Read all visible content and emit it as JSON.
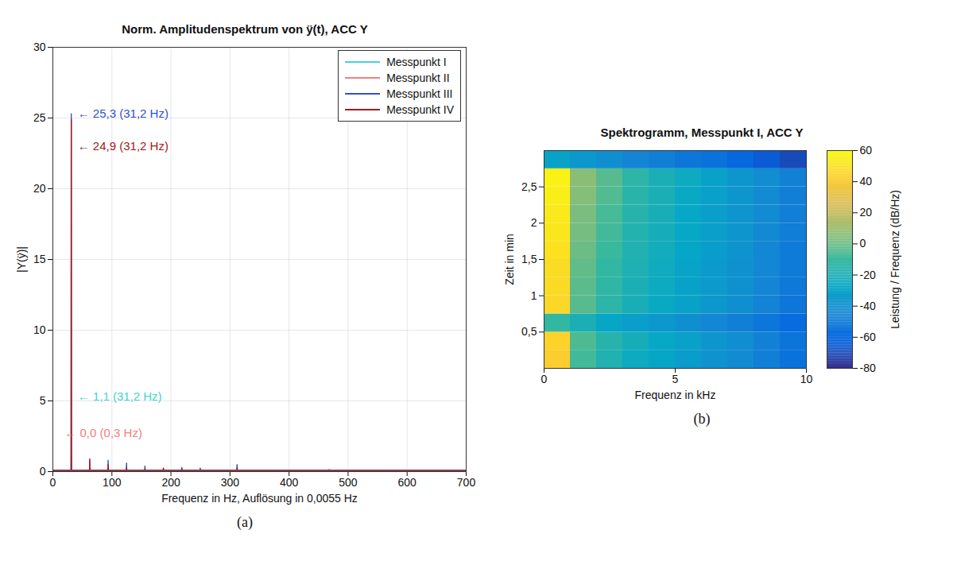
{
  "chart_data": [
    {
      "type": "line",
      "title": "Norm. Amplitudenspektrum von ÿ(t),  ACC Y",
      "x_label": "Frequenz in Hz, Auflösung in 0,0055 Hz",
      "y_label": "|Y(ÿ)|",
      "caption": "(a)",
      "xlim": [
        0,
        700
      ],
      "xticks": [
        0,
        100,
        200,
        300,
        400,
        500,
        600,
        700
      ],
      "ylim": [
        0,
        30
      ],
      "yticks": [
        0,
        5,
        10,
        15,
        20,
        25,
        30
      ],
      "grid": true,
      "legend": "top-right",
      "x": [
        0,
        0.3,
        30.9,
        31.2,
        31.5,
        62.1,
        62.4,
        62.7,
        93.3,
        93.6,
        93.9,
        124.5,
        124.8,
        125.1,
        155.7,
        156,
        156.3,
        186.9,
        187.2,
        187.5,
        218.1,
        218.4,
        218.7,
        249.3,
        249.6,
        249.9,
        311.7,
        312,
        312.3,
        467.7,
        468,
        468.3,
        700
      ],
      "series": [
        {
          "name": "Messpunkt I",
          "color": "#45d3d3",
          "values": [
            0.05,
            0.05,
            0.05,
            1.1,
            0.05,
            0.05,
            0.15,
            0.05,
            0.05,
            0.1,
            0.05,
            0.05,
            0.1,
            0.05,
            0.05,
            0.08,
            0.05,
            0.05,
            0.06,
            0.05,
            0.05,
            0.06,
            0.05,
            0.05,
            0.05,
            0.05,
            0.05,
            0.1,
            0.05,
            0.05,
            0.05,
            0.05,
            0.05
          ]
        },
        {
          "name": "Messpunkt II",
          "color": "#f28080",
          "values": [
            0.0,
            0.0,
            0.0,
            0.0,
            0.0,
            0.0,
            0.0,
            0.0,
            0.0,
            0.0,
            0.0,
            0.0,
            0.0,
            0.0,
            0.0,
            0.0,
            0.0,
            0.0,
            0.0,
            0.0,
            0.0,
            0.0,
            0.0,
            0.0,
            0.0,
            0.0,
            0.0,
            0.0,
            0.0,
            0.0,
            0.0,
            0.0,
            0.0
          ]
        },
        {
          "name": "Messpunkt III",
          "color": "#2f50d0",
          "values": [
            0.1,
            0.1,
            0.1,
            25.3,
            0.1,
            0.1,
            0.8,
            0.1,
            0.1,
            0.8,
            0.1,
            0.1,
            0.6,
            0.1,
            0.1,
            0.4,
            0.1,
            0.1,
            0.2,
            0.1,
            0.1,
            0.3,
            0.1,
            0.1,
            0.25,
            0.1,
            0.1,
            0.5,
            0.1,
            0.1,
            0.15,
            0.1,
            0.1
          ]
        },
        {
          "name": "Messpunkt IV",
          "color": "#a31a1a",
          "values": [
            0.1,
            0.1,
            0.1,
            24.9,
            0.1,
            0.1,
            0.9,
            0.1,
            0.1,
            0.5,
            0.1,
            0.1,
            0.3,
            0.1,
            0.1,
            0.2,
            0.1,
            0.1,
            0.25,
            0.1,
            0.1,
            0.2,
            0.1,
            0.1,
            0.15,
            0.1,
            0.1,
            0.3,
            0.1,
            0.1,
            0.1,
            0.1,
            0.1
          ]
        }
      ],
      "annotations": [
        {
          "text": "← 25,3 (31,2 Hz)",
          "x": 42,
          "y": 25.3,
          "color": "#2f50d0"
        },
        {
          "text": "← 24,9 (31,2 Hz)",
          "x": 42,
          "y": 23,
          "color": "#a31a1a"
        },
        {
          "text": "← 1,1 (31,2 Hz)",
          "x": 42,
          "y": 5.3,
          "color": "#45d3d3"
        },
        {
          "text": "← 0,0 (0,3 Hz)",
          "x": 20,
          "y": 2.7,
          "color": "#f28080"
        }
      ]
    },
    {
      "type": "heatmap",
      "title": "Spektrogramm, Messpunkt I, ACC Y",
      "x_label": "Frequenz in kHz",
      "y_label": "Zeit in min",
      "caption": "(b)",
      "xlim": [
        0,
        10
      ],
      "xticks": [
        0,
        5,
        10
      ],
      "ylim": [
        0,
        3
      ],
      "yticks": [
        {
          "value": 0.5,
          "label": "0,5"
        },
        1,
        {
          "value": 1.5,
          "label": "1,5"
        },
        2,
        {
          "value": 2.5,
          "label": "2,5"
        }
      ],
      "x_edges": [
        0,
        1,
        2,
        3,
        4,
        5,
        6,
        7,
        8,
        9,
        10
      ],
      "y_edges": [
        0,
        0.25,
        0.5,
        0.75,
        1,
        1.25,
        1.5,
        1.75,
        2,
        2.25,
        2.5,
        2.75,
        3
      ],
      "cells": [
        [
          42,
          -8,
          -18,
          -25,
          -28,
          -33,
          -38,
          -42,
          -48,
          -55
        ],
        [
          44,
          -6,
          -16,
          -22,
          -27,
          -31,
          -36,
          -41,
          -47,
          -53
        ],
        [
          -12,
          -20,
          -28,
          -32,
          -35,
          -40,
          -44,
          -48,
          -52,
          -58
        ],
        [
          46,
          -4,
          -14,
          -21,
          -26,
          -30,
          -35,
          -40,
          -46,
          -52
        ],
        [
          47,
          -3,
          -13,
          -20,
          -25,
          -30,
          -34,
          -39,
          -45,
          -51
        ],
        [
          48,
          -2,
          -12,
          -19,
          -24,
          -29,
          -34,
          -39,
          -44,
          -50
        ],
        [
          50,
          0,
          -10,
          -18,
          -23,
          -28,
          -33,
          -38,
          -44,
          -50
        ],
        [
          52,
          2,
          -8,
          -17,
          -22,
          -27,
          -32,
          -37,
          -43,
          -49
        ],
        [
          53,
          3,
          -7,
          -16,
          -21,
          -27,
          -32,
          -37,
          -42,
          -48
        ],
        [
          55,
          5,
          -5,
          -15,
          -20,
          -26,
          -31,
          -36,
          -42,
          -48
        ],
        [
          56,
          6,
          -4,
          -14,
          -20,
          -25,
          -30,
          -36,
          -41,
          -47
        ],
        [
          -30,
          -35,
          -40,
          -45,
          -48,
          -52,
          -55,
          -60,
          -65,
          -70
        ]
      ],
      "colorbar_label": "Leistung / Frequenz (dB/Hz)",
      "colorbar_lim": [
        -80,
        60
      ],
      "colorbar_ticks": [
        -80,
        -60,
        -40,
        -20,
        0,
        20,
        40,
        60
      ]
    }
  ]
}
